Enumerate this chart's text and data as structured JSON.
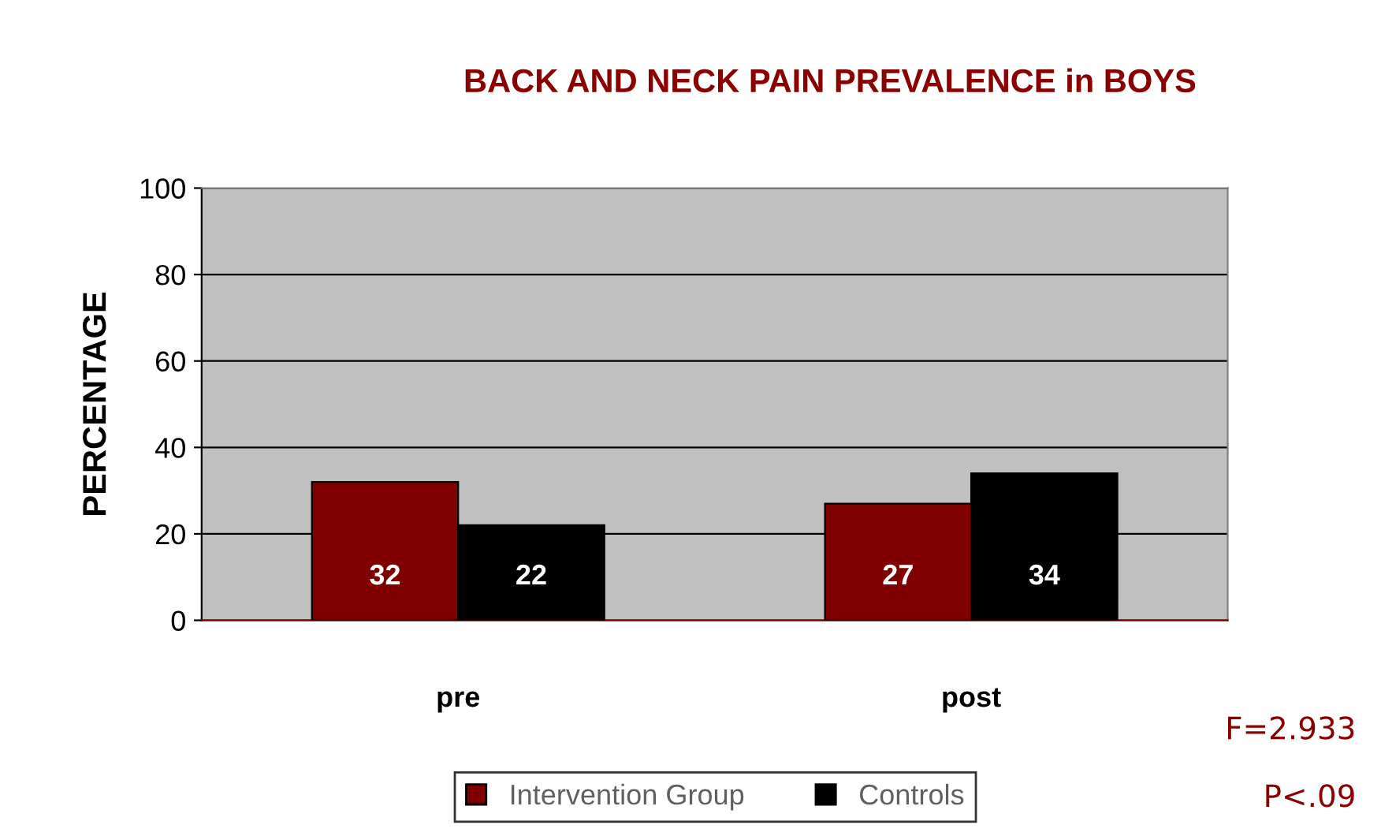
{
  "chart_data": {
    "type": "bar",
    "title": "BACK AND NECK PAIN PREVALENCE in BOYS",
    "ylabel": "PERCENTAGE",
    "categories": [
      "pre",
      "post"
    ],
    "series": [
      {
        "name": "Intervention Group",
        "color": "#800000",
        "values": [
          32,
          27
        ]
      },
      {
        "name": "Controls",
        "color": "#000000",
        "values": [
          22,
          34
        ]
      }
    ],
    "ylim": [
      0,
      100
    ],
    "yticks": [
      0,
      20,
      40,
      60,
      80,
      100
    ],
    "grid": "y",
    "legend": "bottom",
    "data_labels": true,
    "annotations": [
      "F=2.933",
      "P<.09"
    ]
  }
}
